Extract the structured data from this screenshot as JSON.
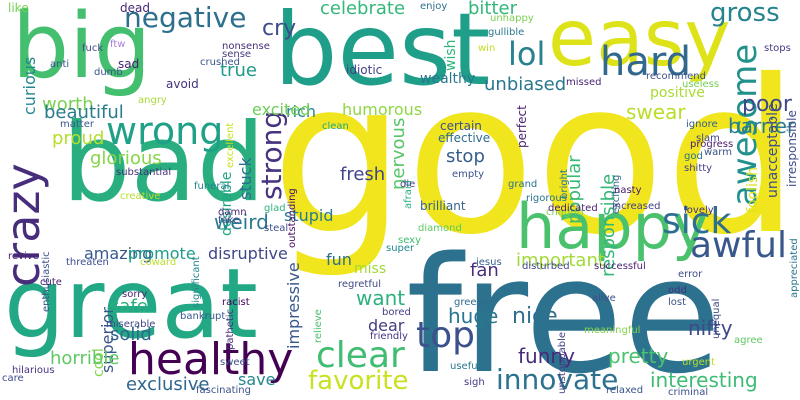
{
  "words": [
    {
      "text": "good",
      "color": "#f1e51d"
    },
    {
      "text": "free",
      "color": "#2c728e"
    },
    {
      "text": "great",
      "color": "#22a884"
    },
    {
      "text": "bad",
      "color": "#29af7f"
    },
    {
      "text": "best",
      "color": "#1f9e89"
    },
    {
      "text": "big",
      "color": "#44bf70"
    },
    {
      "text": "easy",
      "color": "#dde318"
    },
    {
      "text": "happy",
      "color": "#4ac16d"
    },
    {
      "text": "healthy",
      "color": "#440154"
    },
    {
      "text": "wrong",
      "color": "#1fa187"
    },
    {
      "text": "crazy",
      "color": "#472d7b"
    },
    {
      "text": "hard",
      "color": "#31688e"
    },
    {
      "text": "awful",
      "color": "#38588c"
    },
    {
      "text": "sick",
      "color": "#2e6e8e"
    },
    {
      "text": "clear",
      "color": "#40bd72"
    },
    {
      "text": "top",
      "color": "#3b518b"
    },
    {
      "text": "favorite",
      "color": "#cae11f"
    },
    {
      "text": "innovate",
      "color": "#2c728e"
    },
    {
      "text": "awesome",
      "color": "#21918c"
    },
    {
      "text": "strong",
      "color": "#46327e"
    },
    {
      "text": "negative",
      "color": "#2d708e"
    },
    {
      "text": "lol",
      "color": "#26828e"
    },
    {
      "text": "gross",
      "color": "#25848e"
    },
    {
      "text": "poor",
      "color": "#3e4989"
    },
    {
      "text": "barrier",
      "color": "#287d8e"
    },
    {
      "text": "cry",
      "color": "#3e4a89"
    },
    {
      "text": "celebrate",
      "color": "#35b779"
    },
    {
      "text": "bitter",
      "color": "#32b67a"
    },
    {
      "text": "worth",
      "color": "#7ad151"
    },
    {
      "text": "true",
      "color": "#1f9a8a"
    },
    {
      "text": "rich",
      "color": "#25858e"
    },
    {
      "text": "humorous",
      "color": "#90d743"
    },
    {
      "text": "excited",
      "color": "#6ece58"
    },
    {
      "text": "unbiased",
      "color": "#2a778e"
    },
    {
      "text": "swear",
      "color": "#b8de29"
    },
    {
      "text": "positive",
      "color": "#a8db34"
    },
    {
      "text": "beautiful",
      "color": "#297b8e"
    },
    {
      "text": "proud",
      "color": "#b5de2b"
    },
    {
      "text": "glorious",
      "color": "#86d549"
    },
    {
      "text": "stuck",
      "color": "#2f6c8e"
    },
    {
      "text": "nervous",
      "color": "#56c667"
    },
    {
      "text": "stop",
      "color": "#365c8d"
    },
    {
      "text": "fresh",
      "color": "#414487"
    },
    {
      "text": "popular",
      "color": "#3aba76"
    },
    {
      "text": "responsible",
      "color": "#35b779"
    },
    {
      "text": "weird",
      "color": "#297a8e"
    },
    {
      "text": "desirable",
      "color": "#20a486"
    },
    {
      "text": "amazing",
      "color": "#38588c"
    },
    {
      "text": "promote",
      "color": "#1e9b8a"
    },
    {
      "text": "disruptive",
      "color": "#3f4788"
    },
    {
      "text": "important",
      "color": "#a2da37"
    },
    {
      "text": "fun",
      "color": "#2d708e"
    },
    {
      "text": "miss",
      "color": "#a0da39"
    },
    {
      "text": "want",
      "color": "#2db27d"
    },
    {
      "text": "huge",
      "color": "#2a768e"
    },
    {
      "text": "nice",
      "color": "#2e6f8e"
    },
    {
      "text": "funny",
      "color": "#472a7a"
    },
    {
      "text": "pretty",
      "color": "#4ac16d"
    },
    {
      "text": "nifty",
      "color": "#3f4889"
    },
    {
      "text": "fan",
      "color": "#472d7b"
    },
    {
      "text": "dear",
      "color": "#433e85"
    },
    {
      "text": "safe",
      "color": "#29af7f"
    },
    {
      "text": "solid",
      "color": "#31668e"
    },
    {
      "text": "cool",
      "color": "#84d44b"
    },
    {
      "text": "superior",
      "color": "#39568c"
    },
    {
      "text": "horrible",
      "color": "#5ec962"
    },
    {
      "text": "exclusive",
      "color": "#31668e"
    },
    {
      "text": "save",
      "color": "#24878e"
    },
    {
      "text": "interesting",
      "color": "#3dbc74"
    },
    {
      "text": "stupid",
      "color": "#287c8e"
    },
    {
      "text": "curious",
      "color": "#23888e"
    },
    {
      "text": "impressive",
      "color": "#38588c"
    },
    {
      "text": "brilliant",
      "color": "#33638d"
    },
    {
      "text": "perfect",
      "color": "#481f70"
    },
    {
      "text": "effective",
      "color": "#2f6c8e"
    },
    {
      "text": "certain",
      "color": "#3b518b"
    },
    {
      "text": "wealthy",
      "color": "#2a768e"
    },
    {
      "text": "wish",
      "color": "#2fb47c"
    },
    {
      "text": "idiotic",
      "color": "#424186"
    },
    {
      "text": "unacceptable",
      "color": "#3d4e8a"
    },
    {
      "text": "irresponsible",
      "color": "#3e4c8a"
    },
    {
      "text": "foolish",
      "color": "#dde318"
    },
    {
      "text": "dead",
      "color": "#482878"
    },
    {
      "text": "like",
      "color": "#75d054"
    },
    {
      "text": "enjoy",
      "color": "#2d708e"
    },
    {
      "text": "ftw",
      "color": "#ab7fe0"
    },
    {
      "text": "sad",
      "color": "#482173"
    },
    {
      "text": "crushed",
      "color": "#3a548c"
    },
    {
      "text": "avoid",
      "color": "#46337e"
    },
    {
      "text": "nonsense",
      "color": "#472d7b"
    },
    {
      "text": "sense",
      "color": "#443983"
    },
    {
      "text": "fuck",
      "color": "#3e4a89"
    },
    {
      "text": "anti",
      "color": "#3b528b"
    },
    {
      "text": "dumb",
      "color": "#39558c"
    },
    {
      "text": "angry",
      "color": "#a8db34"
    },
    {
      "text": "gullible",
      "color": "#2a788e"
    },
    {
      "text": "win",
      "color": "#c5e021"
    },
    {
      "text": "unhappy",
      "color": "#7ad151"
    },
    {
      "text": "stops",
      "color": "#453882"
    },
    {
      "text": "recommend",
      "color": "#3a538b"
    },
    {
      "text": "useless",
      "color": "#75d054"
    },
    {
      "text": "missed",
      "color": "#482475"
    },
    {
      "text": "matter",
      "color": "#38588c"
    },
    {
      "text": "clean",
      "color": "#22a785"
    },
    {
      "text": "outstanding",
      "color": "#460b5e"
    },
    {
      "text": "excellent",
      "color": "#cae11f"
    },
    {
      "text": "ignore",
      "color": "#355f8d"
    },
    {
      "text": "slam",
      "color": "#414487"
    },
    {
      "text": "progress",
      "color": "#481a6c"
    },
    {
      "text": "warm",
      "color": "#3b528b"
    },
    {
      "text": "god",
      "color": "#2c718e"
    },
    {
      "text": "shitty",
      "color": "#424086"
    },
    {
      "text": "afraid",
      "color": "#2ab07f"
    },
    {
      "text": "exciting",
      "color": "#31688e"
    },
    {
      "text": "bright",
      "color": "#2a788e"
    },
    {
      "text": "substantial",
      "color": "#46327e"
    },
    {
      "text": "funeral",
      "color": "#26828e"
    },
    {
      "text": "creative",
      "color": "#b5de2b"
    },
    {
      "text": "glad",
      "color": "#2fb47c"
    },
    {
      "text": "damn",
      "color": "#472c7a"
    },
    {
      "text": "fake",
      "color": "#3e4a89"
    },
    {
      "text": "significant",
      "color": "#24878e"
    },
    {
      "text": "steal",
      "color": "#3c508b"
    },
    {
      "text": "die",
      "color": "#433e85"
    },
    {
      "text": "empty",
      "color": "#3b518b"
    },
    {
      "text": "grand",
      "color": "#2c728e"
    },
    {
      "text": "rigorous",
      "color": "#2b758e"
    },
    {
      "text": "nasty",
      "color": "#48186a"
    },
    {
      "text": "chagrin",
      "color": "#7ad151"
    },
    {
      "text": "diamond",
      "color": "#5ec962"
    },
    {
      "text": "dedicated",
      "color": "#481c6e"
    },
    {
      "text": "increased",
      "color": "#433d84"
    },
    {
      "text": "lovely",
      "color": "#472f7d"
    },
    {
      "text": "appreciated",
      "color": "#2a768e"
    },
    {
      "text": "enthusiastic",
      "color": "#3b518b"
    },
    {
      "text": "revive",
      "color": "#482273"
    },
    {
      "text": "threaten",
      "color": "#3d4d8a"
    },
    {
      "text": "coward",
      "color": "#b8de29"
    },
    {
      "text": "sexy",
      "color": "#40bd72"
    },
    {
      "text": "super",
      "color": "#23898e"
    },
    {
      "text": "jesus",
      "color": "#355e8d"
    },
    {
      "text": "disturbed",
      "color": "#3e4989"
    },
    {
      "text": "successful",
      "color": "#481f70"
    },
    {
      "text": "error",
      "color": "#3e4c8a"
    },
    {
      "text": "cute",
      "color": "#482071"
    },
    {
      "text": "sorry",
      "color": "#482878"
    },
    {
      "text": "racist",
      "color": "#440256"
    },
    {
      "text": "pathetic",
      "color": "#46307e"
    },
    {
      "text": "relieve",
      "color": "#4ac16d"
    },
    {
      "text": "regretful",
      "color": "#3f4889"
    },
    {
      "text": "greedy",
      "color": "#2f6b8e"
    },
    {
      "text": "odd",
      "color": "#46327e"
    },
    {
      "text": "alive",
      "color": "#3d4e8a"
    },
    {
      "text": "lost",
      "color": "#3b518b"
    },
    {
      "text": "bankrupt",
      "color": "#38588c"
    },
    {
      "text": "bored",
      "color": "#433e85"
    },
    {
      "text": "friendly",
      "color": "#453581"
    },
    {
      "text": "unequal",
      "color": "#3e4989"
    },
    {
      "text": "meaningful",
      "color": "#84d44b"
    },
    {
      "text": "agree",
      "color": "#5ec962"
    },
    {
      "text": "miserable",
      "color": "#414487"
    },
    {
      "text": "sweet",
      "color": "#3c508b"
    },
    {
      "text": "care",
      "color": "#3d4d8a"
    },
    {
      "text": "hilarious",
      "color": "#46337f"
    },
    {
      "text": "fascinating",
      "color": "#3b528b"
    },
    {
      "text": "useful",
      "color": "#2a788e"
    },
    {
      "text": "unstoppable",
      "color": "#424186"
    },
    {
      "text": "sigh",
      "color": "#453781"
    },
    {
      "text": "urgent",
      "color": "#b5de2b"
    },
    {
      "text": "relaxed",
      "color": "#3a548c"
    },
    {
      "text": "criminal",
      "color": "#3c4f8a"
    }
  ]
}
